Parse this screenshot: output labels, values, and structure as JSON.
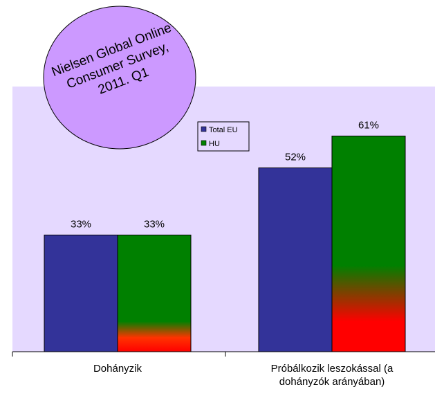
{
  "chart_data": {
    "type": "bar",
    "categories": [
      "Dohányzik",
      "Próbálkozik leszokással (a dohányzók arányában)"
    ],
    "category_lines": [
      [
        "Dohányzik"
      ],
      [
        "Próbálkozik leszokással (a",
        "dohányzók arányában)"
      ]
    ],
    "series": [
      {
        "name": "Total EU",
        "values": [
          33,
          52
        ],
        "labels": [
          "33%",
          "52%"
        ],
        "color": "#333399"
      },
      {
        "name": "HU",
        "values": [
          33,
          61
        ],
        "labels": [
          "33%",
          "61%"
        ],
        "color": "#008000",
        "gradient_to": "#ff0000"
      }
    ],
    "ylim": [
      0,
      75
    ],
    "legend_position": "top-center",
    "plot_background": "#e5d9ff"
  },
  "badge": {
    "lines": [
      "Nielsen Global Online",
      "Consumer Survey,",
      "2011. Q1"
    ],
    "color": "#cc99ff"
  }
}
